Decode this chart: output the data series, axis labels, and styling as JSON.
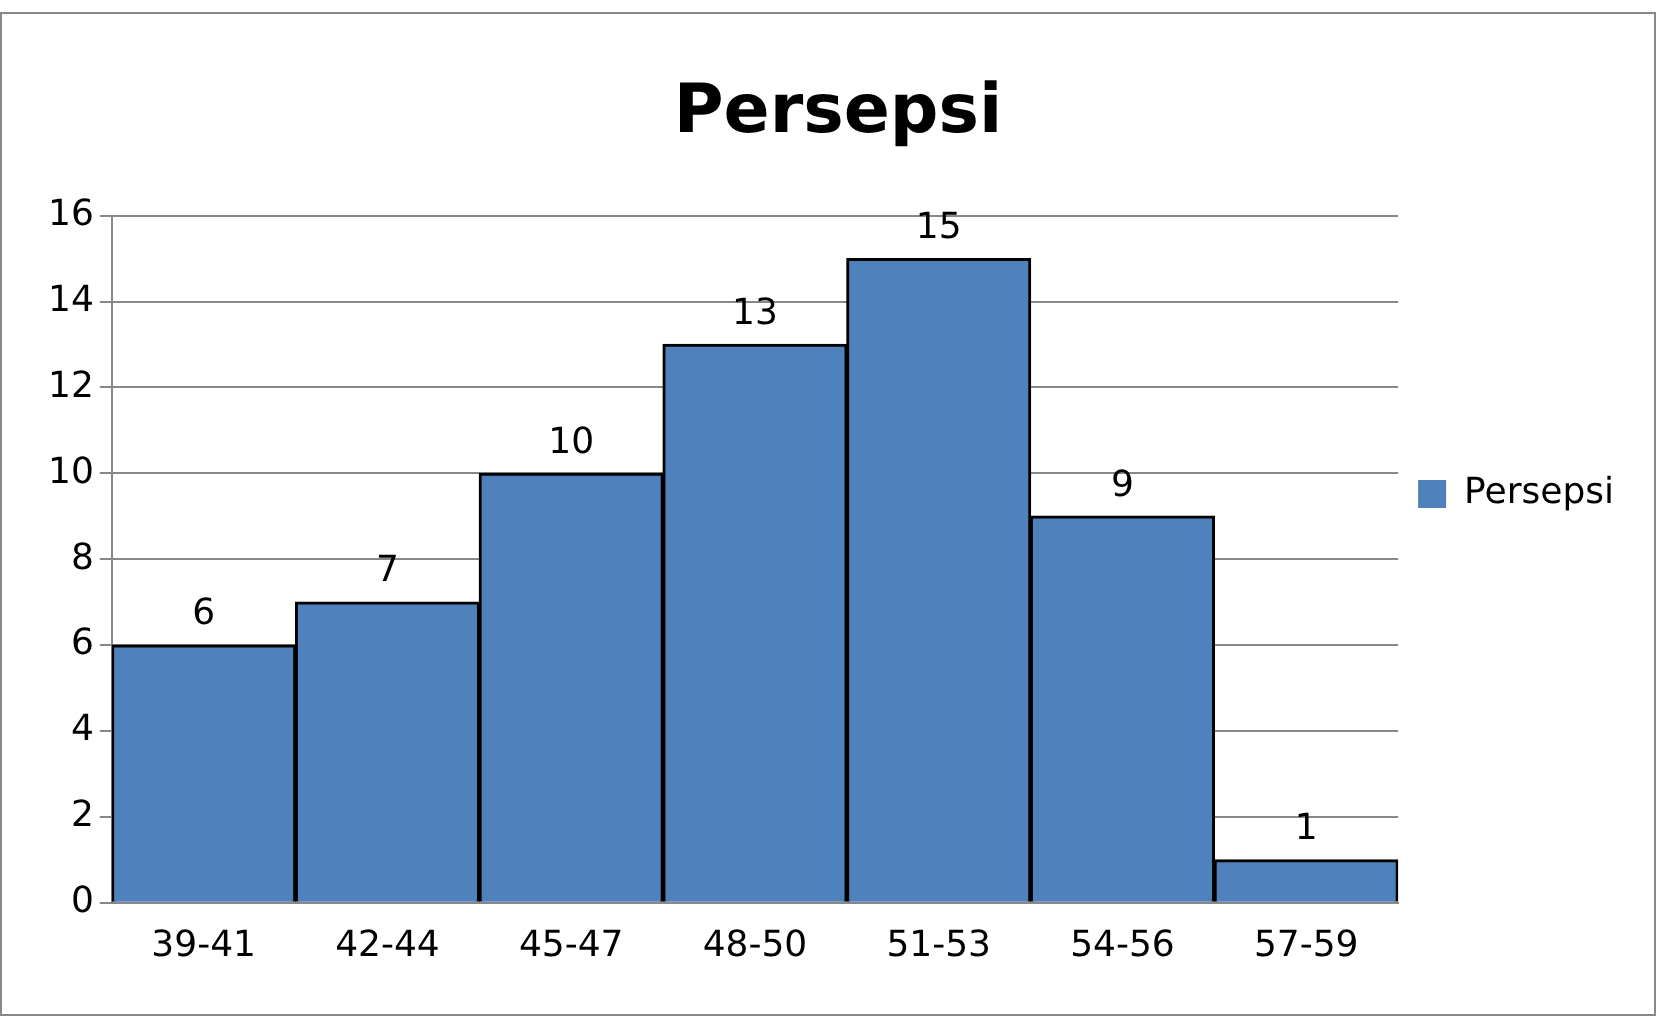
{
  "chart_data": {
    "type": "bar",
    "title": "Persepsi",
    "categories": [
      "39-41",
      "42-44",
      "45-47",
      "48-50",
      "51-53",
      "54-56",
      "57-59"
    ],
    "series": [
      {
        "name": "Persepsi",
        "color": "#4f81bd",
        "values": [
          6,
          7,
          10,
          13,
          15,
          9,
          1
        ]
      }
    ],
    "ylim": [
      0,
      16
    ],
    "yticks": [
      0,
      2,
      4,
      6,
      8,
      10,
      12,
      14,
      16
    ],
    "grid": "y",
    "legend": "right",
    "data_labels": true
  }
}
